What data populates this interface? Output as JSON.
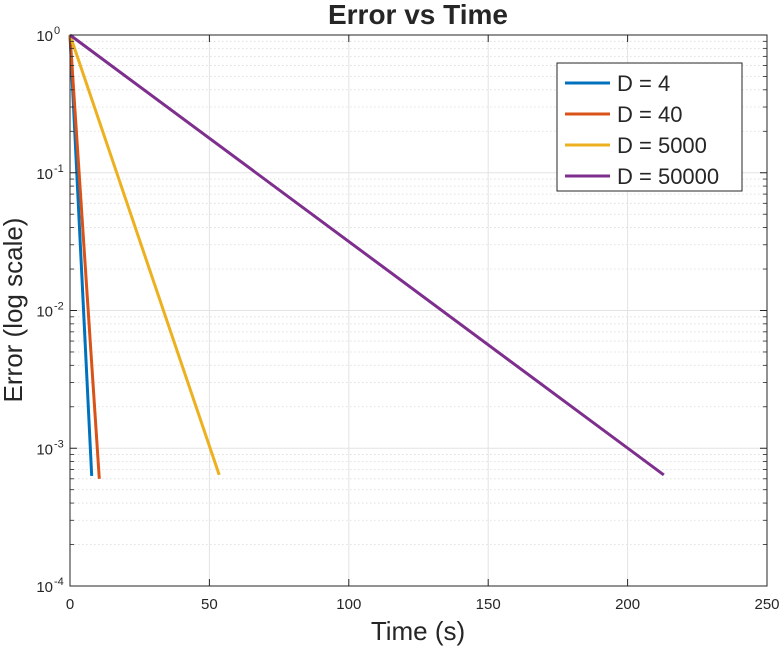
{
  "chart_data": {
    "type": "line",
    "title": "Error vs Time",
    "xlabel": "Time (s)",
    "ylabel": "Error (log scale)",
    "xlim": [
      0,
      250
    ],
    "ylim": [
      0.0001,
      1
    ],
    "yscale": "log",
    "grid": true,
    "legend_position": "top-right",
    "xticks": [
      {
        "value": 0,
        "label": "0"
      },
      {
        "value": 50,
        "label": "50"
      },
      {
        "value": 100,
        "label": "100"
      },
      {
        "value": 150,
        "label": "150"
      },
      {
        "value": 200,
        "label": "200"
      },
      {
        "value": 250,
        "label": "250"
      }
    ],
    "yticks": [
      {
        "value": 1,
        "base": "10",
        "exp": "0"
      },
      {
        "value": 0.1,
        "base": "10",
        "exp": "-1"
      },
      {
        "value": 0.01,
        "base": "10",
        "exp": "-2"
      },
      {
        "value": 0.001,
        "base": "10",
        "exp": "-3"
      },
      {
        "value": 0.0001,
        "base": "10",
        "exp": "-4"
      }
    ],
    "series": [
      {
        "name": "D = 4",
        "color": "#0072BD",
        "x": [
          0,
          7.8
        ],
        "y": [
          1,
          0.00063
        ]
      },
      {
        "name": "D = 40",
        "color": "#D95319",
        "x": [
          0,
          10.5
        ],
        "y": [
          1,
          0.0006
        ]
      },
      {
        "name": "D = 5000",
        "color": "#EDB120",
        "x": [
          0,
          53.5
        ],
        "y": [
          1,
          0.00064
        ]
      },
      {
        "name": "D = 50000",
        "color": "#7E2F8E",
        "x": [
          0,
          213
        ],
        "y": [
          1,
          0.00064
        ]
      }
    ]
  }
}
